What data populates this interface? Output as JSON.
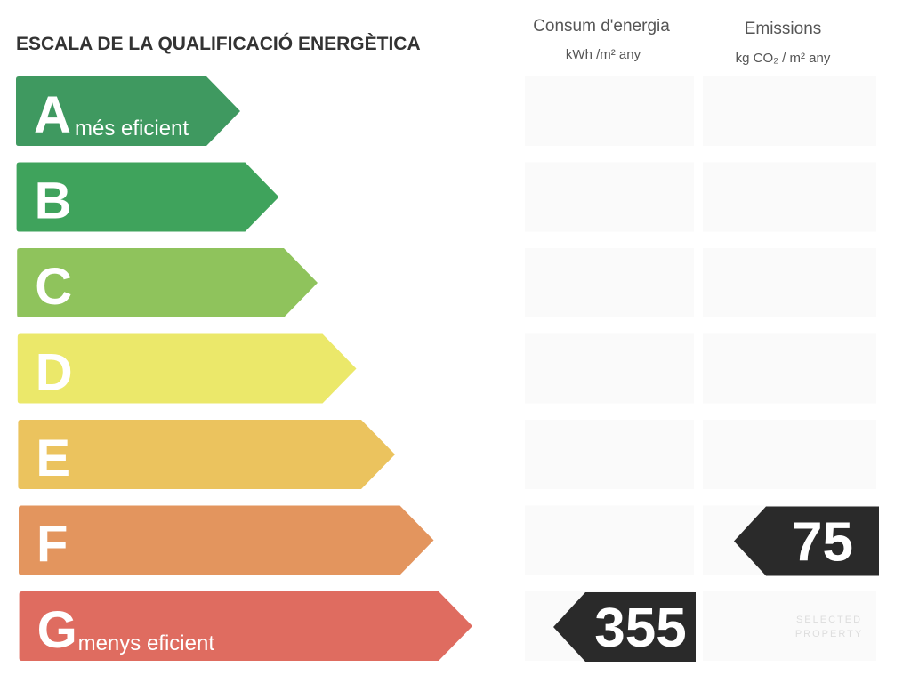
{
  "header": {
    "title": "ESCALA DE LA QUALIFICACIÓ ENERGÈTICA",
    "consumption_title": "Consum d'energia",
    "consumption_unit": "kWh /m² any",
    "emissions_title": "Emissions",
    "emissions_unit": "kg CO₂ / m² any"
  },
  "ratings": [
    {
      "letter": "A",
      "label": "més eficient"
    },
    {
      "letter": "B"
    },
    {
      "letter": "C"
    },
    {
      "letter": "D"
    },
    {
      "letter": "E"
    },
    {
      "letter": "F"
    },
    {
      "letter": "G",
      "label": "menys eficient"
    }
  ],
  "consumption": {
    "value": 355
  },
  "emissions": {
    "value": 75
  },
  "watermark": [
    "SELECTED",
    "PROPERTY"
  ]
}
